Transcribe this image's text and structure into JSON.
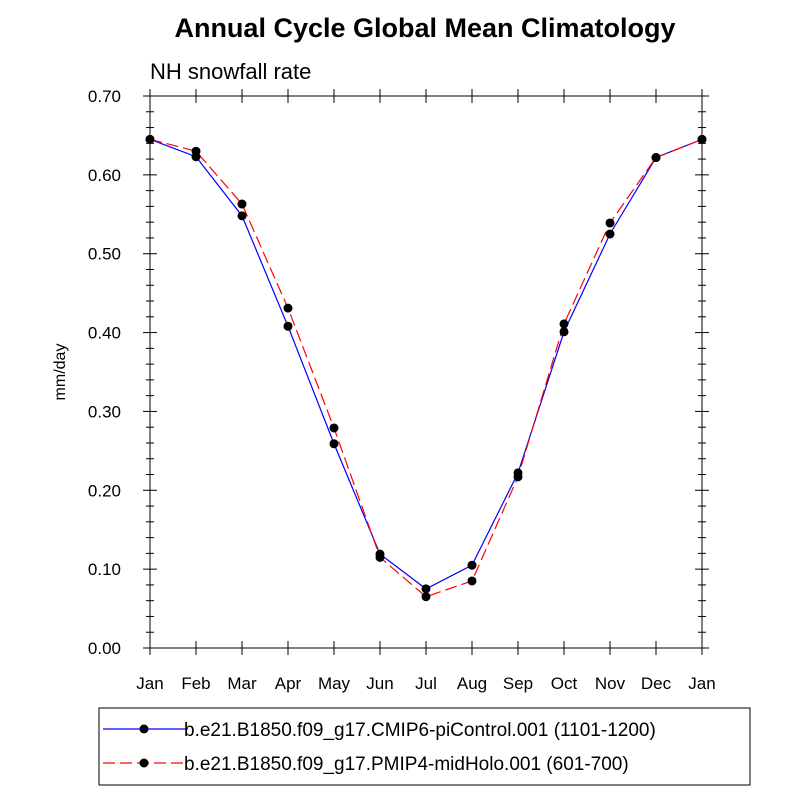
{
  "chart_data": {
    "type": "line",
    "title": "Annual Cycle Global Mean Climatology",
    "subtitle": "NH snowfall rate",
    "xlabel": "",
    "ylabel": "mm/day",
    "ylim": [
      0.0,
      0.7
    ],
    "yticks": [
      "0.00",
      "0.10",
      "0.20",
      "0.30",
      "0.40",
      "0.50",
      "0.60",
      "0.70"
    ],
    "categories": [
      "Jan",
      "Feb",
      "Mar",
      "Apr",
      "May",
      "Jun",
      "Jul",
      "Aug",
      "Sep",
      "Oct",
      "Nov",
      "Dec",
      "Jan"
    ],
    "series": [
      {
        "name": "b.e21.B1850.f09_g17.CMIP6-piControl.001 (1101-1200)",
        "color": "#0000ff",
        "dash": "solid",
        "values": [
          0.645,
          0.623,
          0.548,
          0.408,
          0.259,
          0.119,
          0.075,
          0.105,
          0.222,
          0.401,
          0.525,
          0.622,
          0.645
        ]
      },
      {
        "name": "b.e21.B1850.f09_g17.PMIP4-midHolo.001 (601-700)",
        "color": "#ff0000",
        "dash": "dashed",
        "values": [
          0.645,
          0.63,
          0.563,
          0.431,
          0.279,
          0.115,
          0.065,
          0.085,
          0.217,
          0.411,
          0.539,
          0.622,
          0.645
        ]
      }
    ],
    "legend_position": "bottom",
    "grid": false
  }
}
